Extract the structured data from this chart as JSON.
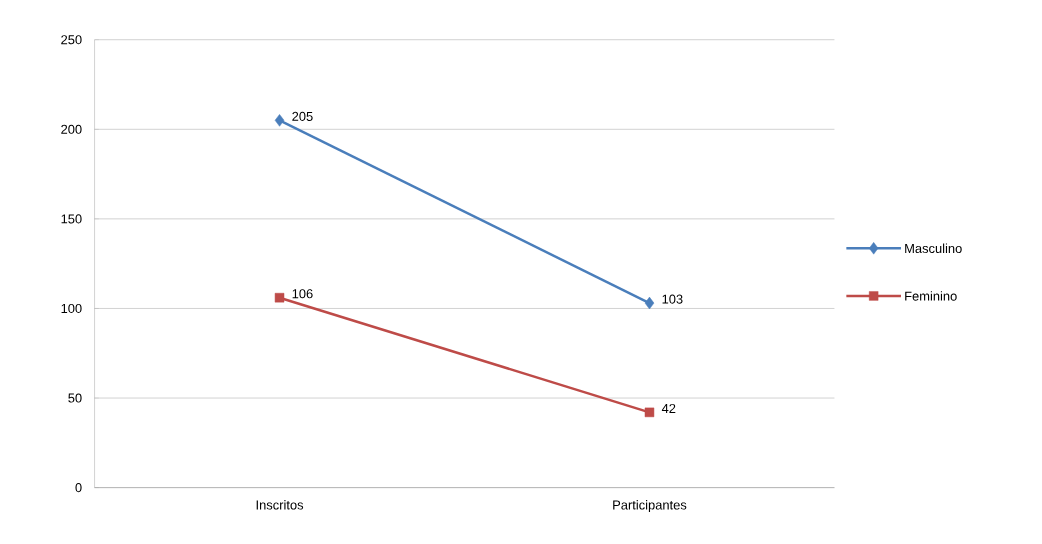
{
  "chart_data": {
    "type": "line",
    "categories": [
      "Inscritos",
      "Participantes"
    ],
    "series": [
      {
        "name": "Masculino",
        "color": "#4a7ebb",
        "values": [
          205,
          103
        ],
        "marker": "diamond"
      },
      {
        "name": "Feminino",
        "color": "#be4b48",
        "values": [
          106,
          42
        ],
        "marker": "square"
      }
    ],
    "ylim": [
      0,
      250
    ],
    "yticks": [
      0,
      50,
      100,
      150,
      200,
      250
    ],
    "grid": "y",
    "legend": "right",
    "data_labels": true
  }
}
